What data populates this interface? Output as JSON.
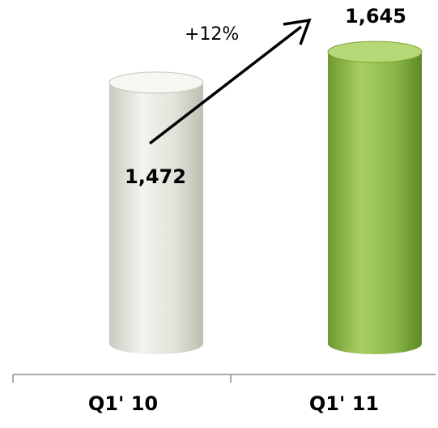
{
  "chart_data": {
    "type": "bar",
    "title": "",
    "xlabel": "",
    "ylabel": "",
    "categories": [
      "Q1' 10",
      "Q1' 11"
    ],
    "values": [
      1472,
      1645
    ],
    "data_labels": [
      "1,472",
      "1,645"
    ],
    "annotation": "+12%",
    "ylim": [
      0,
      1645
    ],
    "grid": false,
    "legend": "none",
    "colors": {
      "bar_1": "#e6e6df",
      "bar_2": "#8fb84a",
      "axis": "#8c8c8c"
    }
  }
}
